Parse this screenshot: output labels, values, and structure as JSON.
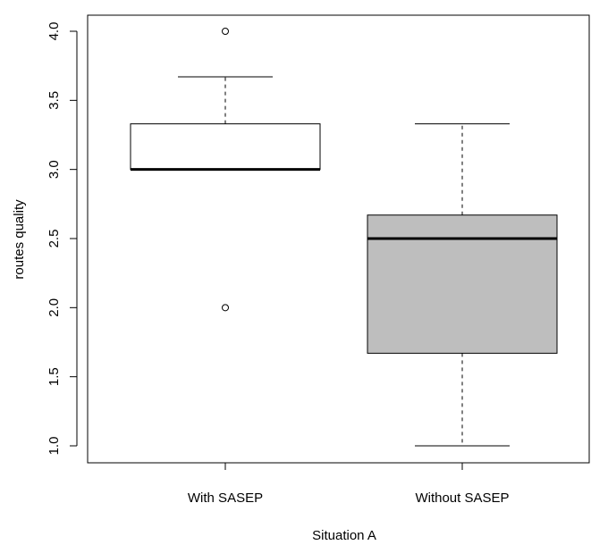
{
  "chart_data": {
    "type": "boxplot",
    "xlabel": "Situation A",
    "ylabel": "routes quality",
    "ylim": [
      0.9,
      4.1
    ],
    "yticks": [
      "1.0",
      "1.5",
      "2.0",
      "2.5",
      "3.0",
      "3.5",
      "4.0"
    ],
    "grid": false,
    "legend": "none",
    "groups": [
      {
        "name": "With SASEP",
        "fill": "#ffffff",
        "whisker_low": 3.0,
        "q1": 3.0,
        "median": 3.0,
        "q3": 3.33,
        "whisker_high": 3.67,
        "outliers": [
          4.0,
          2.0
        ]
      },
      {
        "name": "Without SASEP",
        "fill": "#bebebe",
        "whisker_low": 1.0,
        "q1": 1.67,
        "median": 2.5,
        "q3": 2.67,
        "whisker_high": 3.33,
        "outliers": []
      }
    ]
  }
}
